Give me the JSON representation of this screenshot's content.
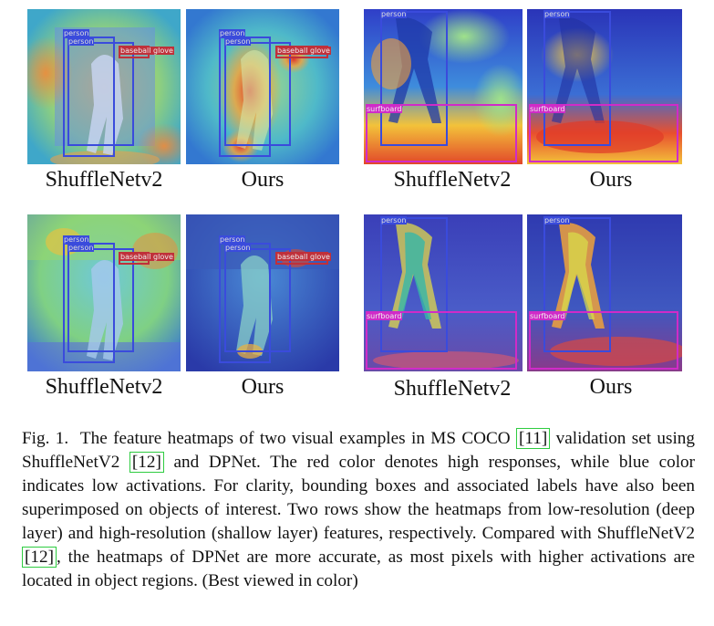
{
  "figure": {
    "panels": [
      {
        "id": "top-left-shufflenet",
        "caption": "ShuffleNetv2",
        "labels": [
          "person",
          "person",
          "baseball glove"
        ]
      },
      {
        "id": "top-left-ours",
        "caption": "Ours",
        "labels": [
          "person",
          "person",
          "baseball glove"
        ]
      },
      {
        "id": "top-right-shufflenet",
        "caption": "ShuffleNetv2",
        "labels": [
          "person",
          "surfboard"
        ]
      },
      {
        "id": "top-right-ours",
        "caption": "Ours",
        "labels": [
          "person",
          "surfboard"
        ]
      },
      {
        "id": "bottom-left-shufflenet",
        "caption": "ShuffleNetv2",
        "labels": [
          "person",
          "person",
          "baseball glove"
        ]
      },
      {
        "id": "bottom-left-ours",
        "caption": "Ours",
        "labels": [
          "person",
          "person",
          "baseball glove"
        ]
      },
      {
        "id": "bottom-right-shufflenet",
        "caption": "ShuffleNetv2",
        "labels": [
          "person",
          "surfboard"
        ]
      },
      {
        "id": "bottom-right-ours",
        "caption": "Ours",
        "labels": [
          "person",
          "surfboard"
        ]
      }
    ],
    "colors": {
      "person_box": "#3a4bdc",
      "glove_box": "#c0303a",
      "surfboard_box": "#d02bc8",
      "cite_box": "#2ecc40"
    }
  },
  "caption": {
    "label": "Fig. 1.",
    "part1": "The feature heatmaps of two visual examples in MS COCO ",
    "cite1": "[11]",
    "part2": " validation set using ShuffleNetV2 ",
    "cite2": "[12]",
    "part3": " and DPNet. The red color denotes high responses, while blue color indicates low activations. For clarity, bounding boxes and associated labels have also been superimposed on objects of interest. Two rows show the heatmaps from low-resolution (deep layer) and high-resolution (shallow layer) features, respectively. Compared with ShuffleNetV2 ",
    "cite3": "[12]",
    "part4": ", the heatmaps of DPNet are more accurate, as most pixels with higher activations are located in object regions. (Best viewed in color)"
  }
}
